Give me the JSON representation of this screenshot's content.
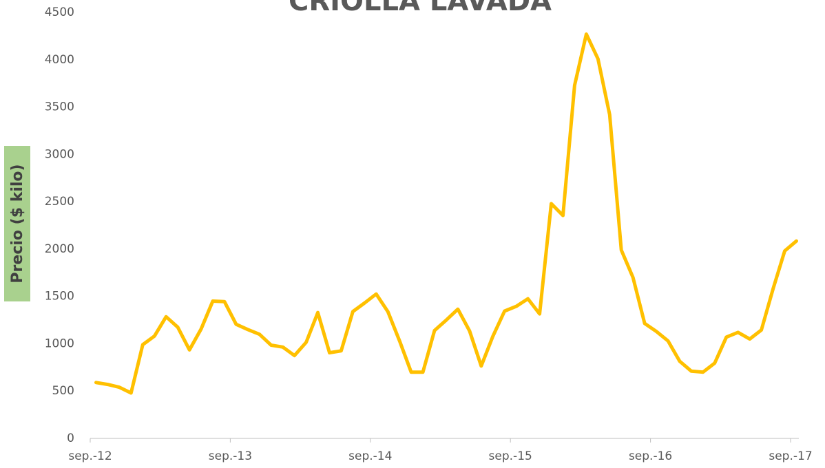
{
  "chart_data": {
    "type": "line",
    "title": "CRIOLLA LAVADA",
    "y_label": "Precio ($ kilo)",
    "x_labels": [
      "sep.-12",
      "sep.-13",
      "sep.-14",
      "sep.-15",
      "sep.-16",
      "sep.-17"
    ],
    "values": [
      590,
      570,
      540,
      480,
      990,
      1080,
      1285,
      1175,
      935,
      1155,
      1450,
      1445,
      1205,
      1150,
      1100,
      985,
      965,
      875,
      1015,
      1330,
      905,
      925,
      1340,
      1430,
      1525,
      1340,
      1030,
      700,
      700,
      1140,
      1250,
      1365,
      1135,
      765,
      1080,
      1345,
      1395,
      1475,
      1315,
      2480,
      2355,
      3730,
      4270,
      4010,
      3420,
      1990,
      1700,
      1215,
      1130,
      1030,
      815,
      710,
      700,
      795,
      1070,
      1120,
      1050,
      1145,
      1580,
      1980,
      2085
    ],
    "color": "#ffc000",
    "ylim": [
      0,
      4500
    ],
    "yticks": [
      0,
      500,
      1000,
      1500,
      2000,
      2500,
      3000,
      3500,
      4000,
      4500
    ],
    "grid": false
  }
}
